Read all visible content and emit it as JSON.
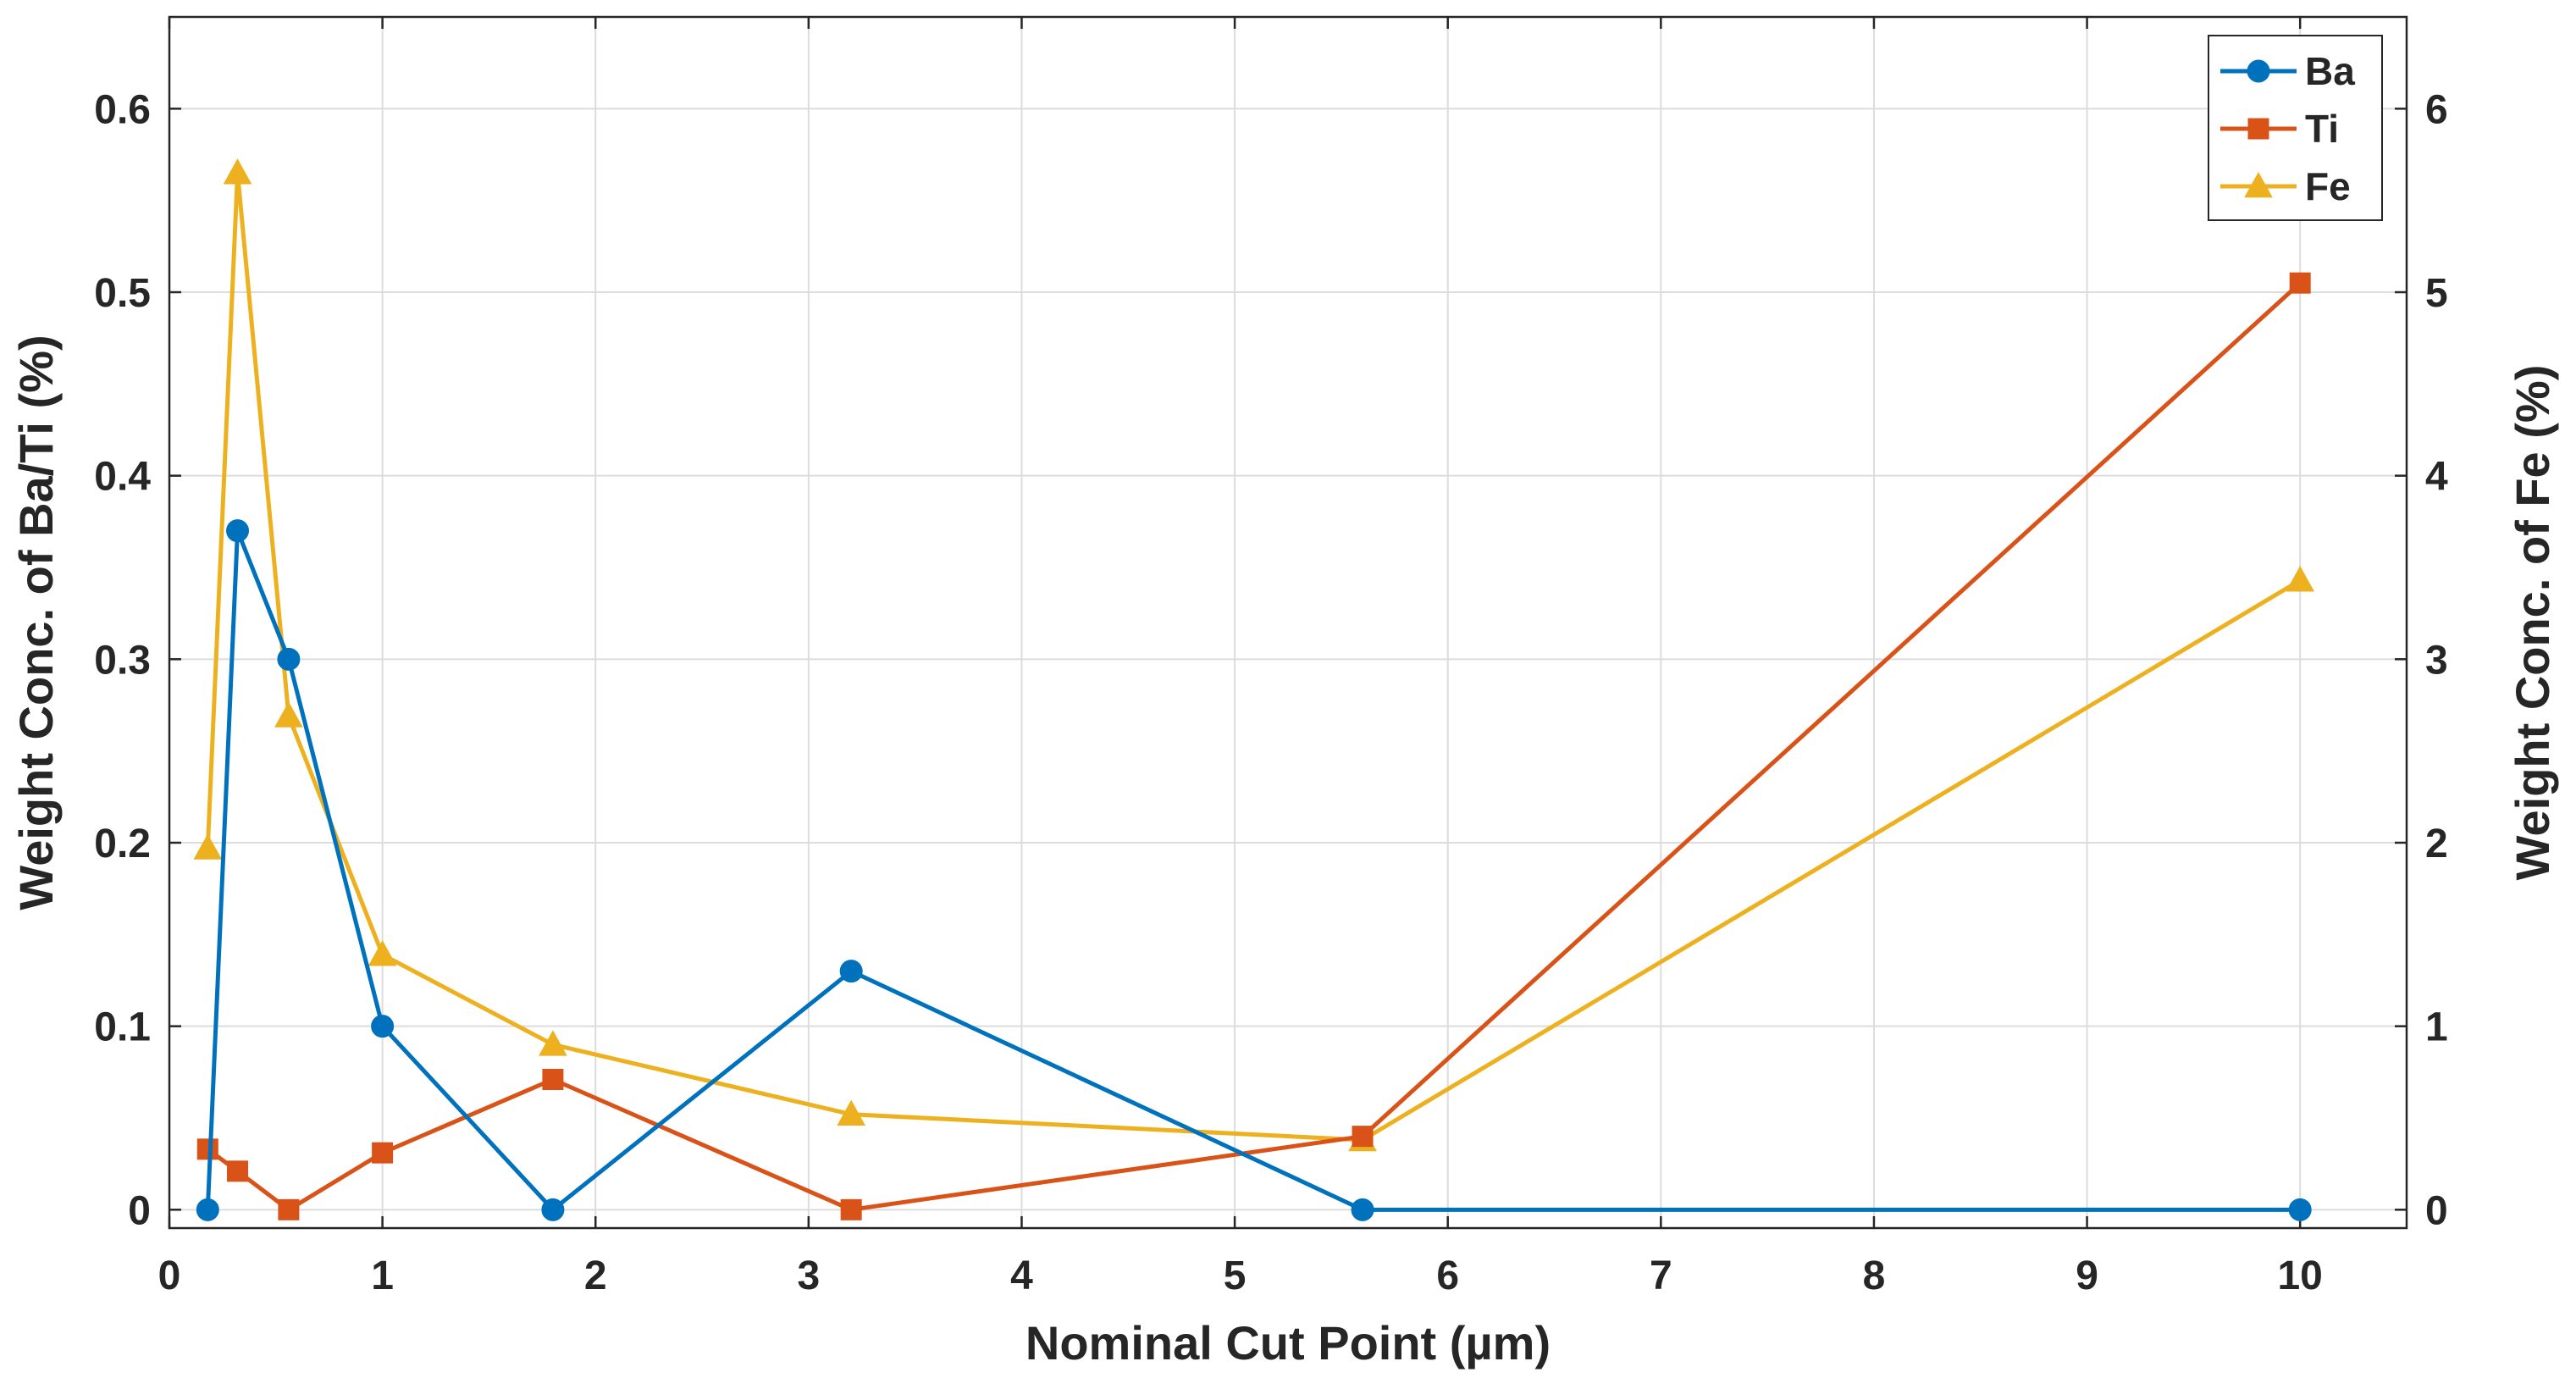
{
  "chart_data": {
    "type": "line",
    "xlabel": "Nominal Cut Point (µm)",
    "ylabel_left": "Weight Conc. of Ba/Ti (%)",
    "ylabel_right": "Weight Conc. of Fe (%)",
    "xlim": [
      0,
      10.5
    ],
    "ylim_left": [
      -0.01,
      0.65
    ],
    "ylim_right": [
      -0.1,
      6.5
    ],
    "grid": true,
    "legend_position": "top-right",
    "x_ticks": [
      "0",
      "1",
      "2",
      "3",
      "4",
      "5",
      "6",
      "7",
      "8",
      "9",
      "10"
    ],
    "y_left_ticks": [
      "0",
      "0.1",
      "0.2",
      "0.3",
      "0.4",
      "0.5",
      "0.6"
    ],
    "y_right_ticks": [
      "0",
      "1",
      "2",
      "3",
      "4",
      "5",
      "6"
    ],
    "series": [
      {
        "name": "Ba",
        "axis": "left",
        "marker": "circle",
        "color": "#0072BD",
        "x": [
          0.18,
          0.32,
          0.56,
          1.0,
          1.8,
          3.2,
          5.6,
          10.0
        ],
        "values": [
          0.0,
          0.37,
          0.3,
          0.1,
          0.0,
          0.13,
          0.0,
          0.0
        ]
      },
      {
        "name": "Ti",
        "axis": "left",
        "marker": "square",
        "color": "#D95319",
        "x": [
          0.18,
          0.32,
          0.56,
          1.0,
          1.8,
          3.2,
          5.6,
          10.0
        ],
        "values": [
          0.033,
          0.021,
          0.0,
          0.031,
          0.071,
          0.0,
          0.04,
          0.505
        ]
      },
      {
        "name": "Fe",
        "axis": "right",
        "marker": "triangle",
        "color": "#EDB120",
        "x": [
          0.18,
          0.32,
          0.56,
          1.0,
          1.8,
          3.2,
          5.6,
          10.0
        ],
        "values": [
          1.97,
          5.65,
          2.69,
          1.39,
          0.9,
          0.52,
          0.38,
          3.43
        ]
      }
    ]
  }
}
